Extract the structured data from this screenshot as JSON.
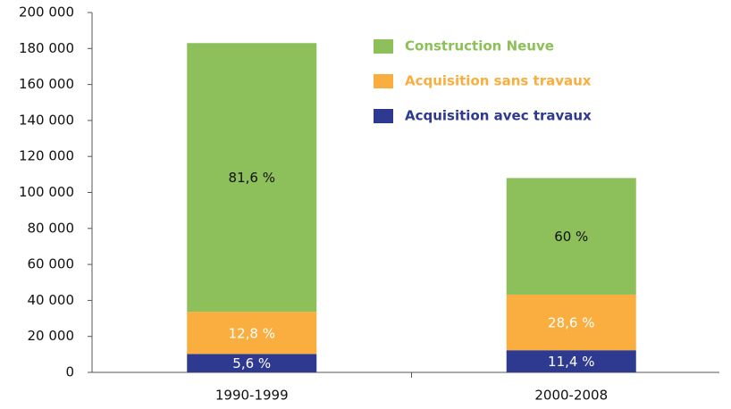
{
  "chart_data": {
    "type": "stacked_bar",
    "categories": [
      "1990-1999",
      "2000-2008"
    ],
    "series": [
      {
        "name": "Acquisition avec travaux",
        "color": "#2e3a8f",
        "values": [
          10248,
          12312
        ],
        "data_labels": [
          "5,6 %",
          "11,4 %"
        ],
        "label_color": "#ffffff"
      },
      {
        "name": "Acquisition sans travaux",
        "color": "#f9ae3f",
        "values": [
          23424,
          30888
        ],
        "data_labels": [
          "12,8 %",
          "28,6 %"
        ],
        "label_color": "#ffffff"
      },
      {
        "name": "Construction Neuve",
        "color": "#8dbf5a",
        "values": [
          149328,
          64800
        ],
        "data_labels": [
          "81,6 %",
          "60 %"
        ],
        "label_color": "#111111"
      }
    ],
    "ylim": [
      0,
      200000
    ],
    "yticks": [
      {
        "value": 0,
        "label": "0"
      },
      {
        "value": 20000,
        "label": "20 000"
      },
      {
        "value": 40000,
        "label": "40 000"
      },
      {
        "value": 60000,
        "label": "60 000"
      },
      {
        "value": 80000,
        "label": "80 000"
      },
      {
        "value": 100000,
        "label": "100 000"
      },
      {
        "value": 120000,
        "label": "120 000"
      },
      {
        "value": 140000,
        "label": "140 000"
      },
      {
        "value": 160000,
        "label": "160 000"
      },
      {
        "value": 180000,
        "label": "180 000"
      },
      {
        "value": 200000,
        "label": "200 000"
      }
    ],
    "grid": false
  }
}
